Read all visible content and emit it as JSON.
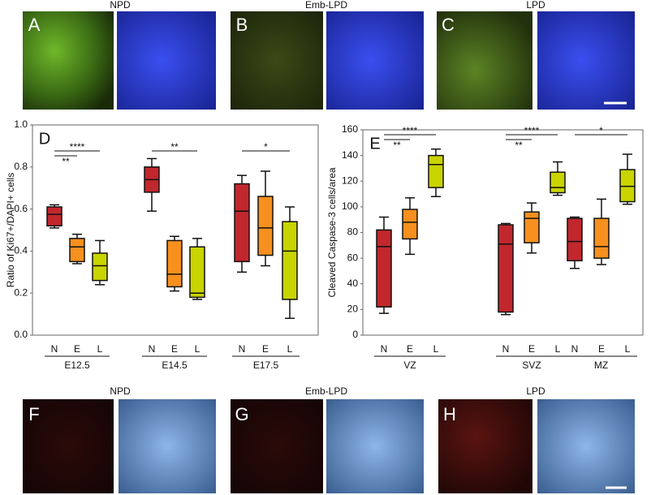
{
  "panels": {
    "top": [
      {
        "letter": "A",
        "title": "NPD"
      },
      {
        "letter": "B",
        "title": "Emb-LPD"
      },
      {
        "letter": "C",
        "title": "LPD"
      }
    ],
    "bottom": [
      {
        "letter": "F",
        "title": "NPD"
      },
      {
        "letter": "G",
        "title": "Emb-LPD"
      },
      {
        "letter": "H",
        "title": "LPD"
      }
    ]
  },
  "chart_data": [
    {
      "type": "box",
      "panel_label": "D",
      "y_label": "Ratio of Ki67+/DAPI+ cells",
      "groups": [
        "E12.5",
        "E14.5",
        "E17.5"
      ],
      "ylim": [
        0,
        1.0
      ],
      "yticks": [
        {
          "value": 0,
          "label": "0.0"
        },
        0.2,
        0.4,
        0.6,
        0.8,
        {
          "value": 1.0,
          "label": "1.0"
        }
      ],
      "series": [
        {
          "name": "N",
          "color": "#c1272d",
          "values": [
            {
              "min": 0.51,
              "q1": 0.52,
              "median": 0.575,
              "q3": 0.61,
              "max": 0.62
            },
            {
              "min": 0.59,
              "q1": 0.68,
              "median": 0.74,
              "q3": 0.8,
              "max": 0.84
            },
            {
              "min": 0.3,
              "q1": 0.35,
              "median": 0.59,
              "q3": 0.72,
              "max": 0.76
            }
          ]
        },
        {
          "name": "E",
          "color": "#f7901e",
          "values": [
            {
              "min": 0.34,
              "q1": 0.35,
              "median": 0.42,
              "q3": 0.46,
              "max": 0.48
            },
            {
              "min": 0.21,
              "q1": 0.23,
              "median": 0.29,
              "q3": 0.45,
              "max": 0.47
            },
            {
              "min": 0.33,
              "q1": 0.38,
              "median": 0.51,
              "q3": 0.66,
              "max": 0.78
            }
          ]
        },
        {
          "name": "L",
          "color": "#c9d400",
          "values": [
            {
              "min": 0.24,
              "q1": 0.26,
              "median": 0.33,
              "q3": 0.39,
              "max": 0.45
            },
            {
              "min": 0.17,
              "q1": 0.18,
              "median": 0.2,
              "q3": 0.42,
              "max": 0.46
            },
            {
              "min": 0.08,
              "q1": 0.17,
              "median": 0.4,
              "q3": 0.54,
              "max": 0.61
            }
          ]
        }
      ],
      "significance": [
        {
          "group": "E12.5",
          "pair": [
            "N",
            "L"
          ],
          "label": "****"
        },
        {
          "group": "E12.5",
          "pair": [
            "N",
            "E"
          ],
          "label": "**"
        },
        {
          "group": "E14.5",
          "pair": [
            "N",
            "L"
          ],
          "label": "**"
        },
        {
          "group": "E17.5",
          "pair": [
            "N",
            "L"
          ],
          "label": "*"
        }
      ]
    },
    {
      "type": "box",
      "panel_label": "E",
      "y_label": "Cleaved Caspase-3 cells/area",
      "groups": [
        "VZ",
        "SVZ",
        "MZ"
      ],
      "ylim": [
        0,
        160
      ],
      "yticks": [
        0,
        20,
        40,
        60,
        80,
        100,
        120,
        140,
        160
      ],
      "series": [
        {
          "name": "N",
          "color": "#c1272d",
          "values": [
            {
              "min": 17,
              "q1": 22,
              "median": 69,
              "q3": 82,
              "max": 92
            },
            {
              "min": 16,
              "q1": 18,
              "median": 71,
              "q3": 86,
              "max": 87
            },
            {
              "min": 52,
              "q1": 58,
              "median": 73,
              "q3": 91,
              "max": 92
            }
          ]
        },
        {
          "name": "E",
          "color": "#f7901e",
          "values": [
            {
              "min": 63,
              "q1": 75,
              "median": 88,
              "q3": 98,
              "max": 107
            },
            {
              "min": 64,
              "q1": 72,
              "median": 91,
              "q3": 96,
              "max": 103
            },
            {
              "min": 55,
              "q1": 60,
              "median": 69,
              "q3": 91,
              "max": 106
            }
          ]
        },
        {
          "name": "L",
          "color": "#c9d400",
          "values": [
            {
              "min": 108,
              "q1": 115,
              "median": 133,
              "q3": 140,
              "max": 145
            },
            {
              "min": 109,
              "q1": 111,
              "median": 115,
              "q3": 127,
              "max": 135
            },
            {
              "min": 102,
              "q1": 104,
              "median": 116,
              "q3": 129,
              "max": 141
            }
          ]
        }
      ],
      "significance": [
        {
          "group": "VZ",
          "pair": [
            "N",
            "L"
          ],
          "label": "****"
        },
        {
          "group": "VZ",
          "pair": [
            "N",
            "E"
          ],
          "label": "**"
        },
        {
          "group": "SVZ",
          "pair": [
            "N",
            "L"
          ],
          "label": "****"
        },
        {
          "group": "SVZ",
          "pair": [
            "N",
            "E"
          ],
          "label": "**"
        },
        {
          "group": "MZ",
          "pair": [
            "N",
            "L"
          ],
          "label": "*"
        }
      ]
    }
  ]
}
